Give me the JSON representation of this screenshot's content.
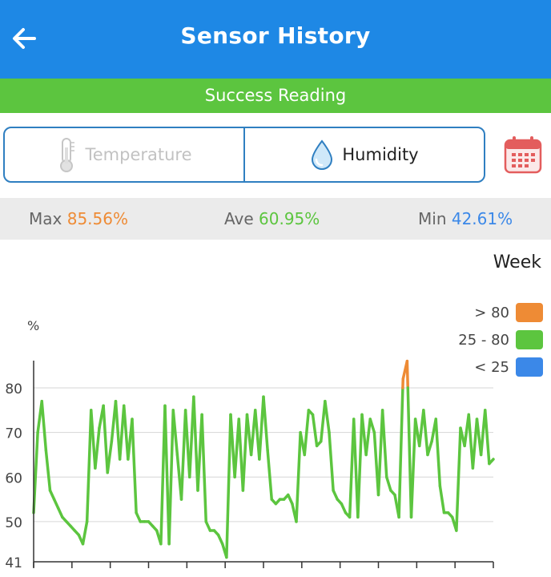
{
  "header": {
    "title": "Sensor History",
    "back_icon": "arrow-left-icon"
  },
  "status": {
    "text": "Success Reading",
    "color": "#5cc53f"
  },
  "tabs": [
    {
      "label": "Temperature",
      "icon": "thermometer-icon",
      "active": false
    },
    {
      "label": "Humidity",
      "icon": "water-drop-icon",
      "active": true
    }
  ],
  "calendar": {
    "icon": "calendar-icon",
    "color": "#e35d5d"
  },
  "stats": {
    "max_label": "Max",
    "max_value": "85.56%",
    "ave_label": "Ave",
    "ave_value": "60.95%",
    "min_label": "Min",
    "min_value": "42.61%"
  },
  "range_label": "Week",
  "legend": [
    {
      "label": "> 80",
      "color": "#ee8b35"
    },
    {
      "label": "25 - 80",
      "color": "#5cc53f"
    },
    {
      "label": "< 25",
      "color": "#3b88e8"
    }
  ],
  "chart_data": {
    "type": "line",
    "title": "",
    "xlabel": "",
    "ylabel": "%",
    "ylim": [
      41,
      86
    ],
    "yticks": [
      41,
      50,
      60,
      70,
      80
    ],
    "x_tick_count": 12,
    "grid": true,
    "legend_placement": "top-right",
    "threshold_high": 80,
    "threshold_low": 25,
    "series": [
      {
        "values": [
          52,
          70,
          77,
          66,
          57,
          55,
          53,
          51,
          50,
          49,
          48,
          47,
          45,
          50,
          75,
          62,
          71,
          76,
          61,
          68,
          77,
          64,
          76,
          64,
          73,
          52,
          50,
          50,
          50,
          49,
          48,
          45,
          76,
          45,
          75,
          65,
          55,
          75,
          60,
          78,
          57,
          74,
          50,
          48,
          48,
          47,
          45,
          42,
          74,
          60,
          73,
          57,
          74,
          65,
          75,
          64,
          78,
          66,
          55,
          54,
          55,
          55,
          56,
          54,
          50,
          70,
          65,
          75,
          74,
          67,
          68,
          77,
          70,
          57,
          55,
          54,
          52,
          51,
          73,
          51,
          74,
          65,
          73,
          70,
          56,
          75,
          60,
          57,
          56,
          51,
          82,
          86,
          51,
          73,
          67,
          75,
          65,
          68,
          73,
          58,
          52,
          52,
          51,
          48,
          71,
          67,
          74,
          62,
          73,
          65,
          75,
          63,
          64
        ]
      }
    ]
  }
}
